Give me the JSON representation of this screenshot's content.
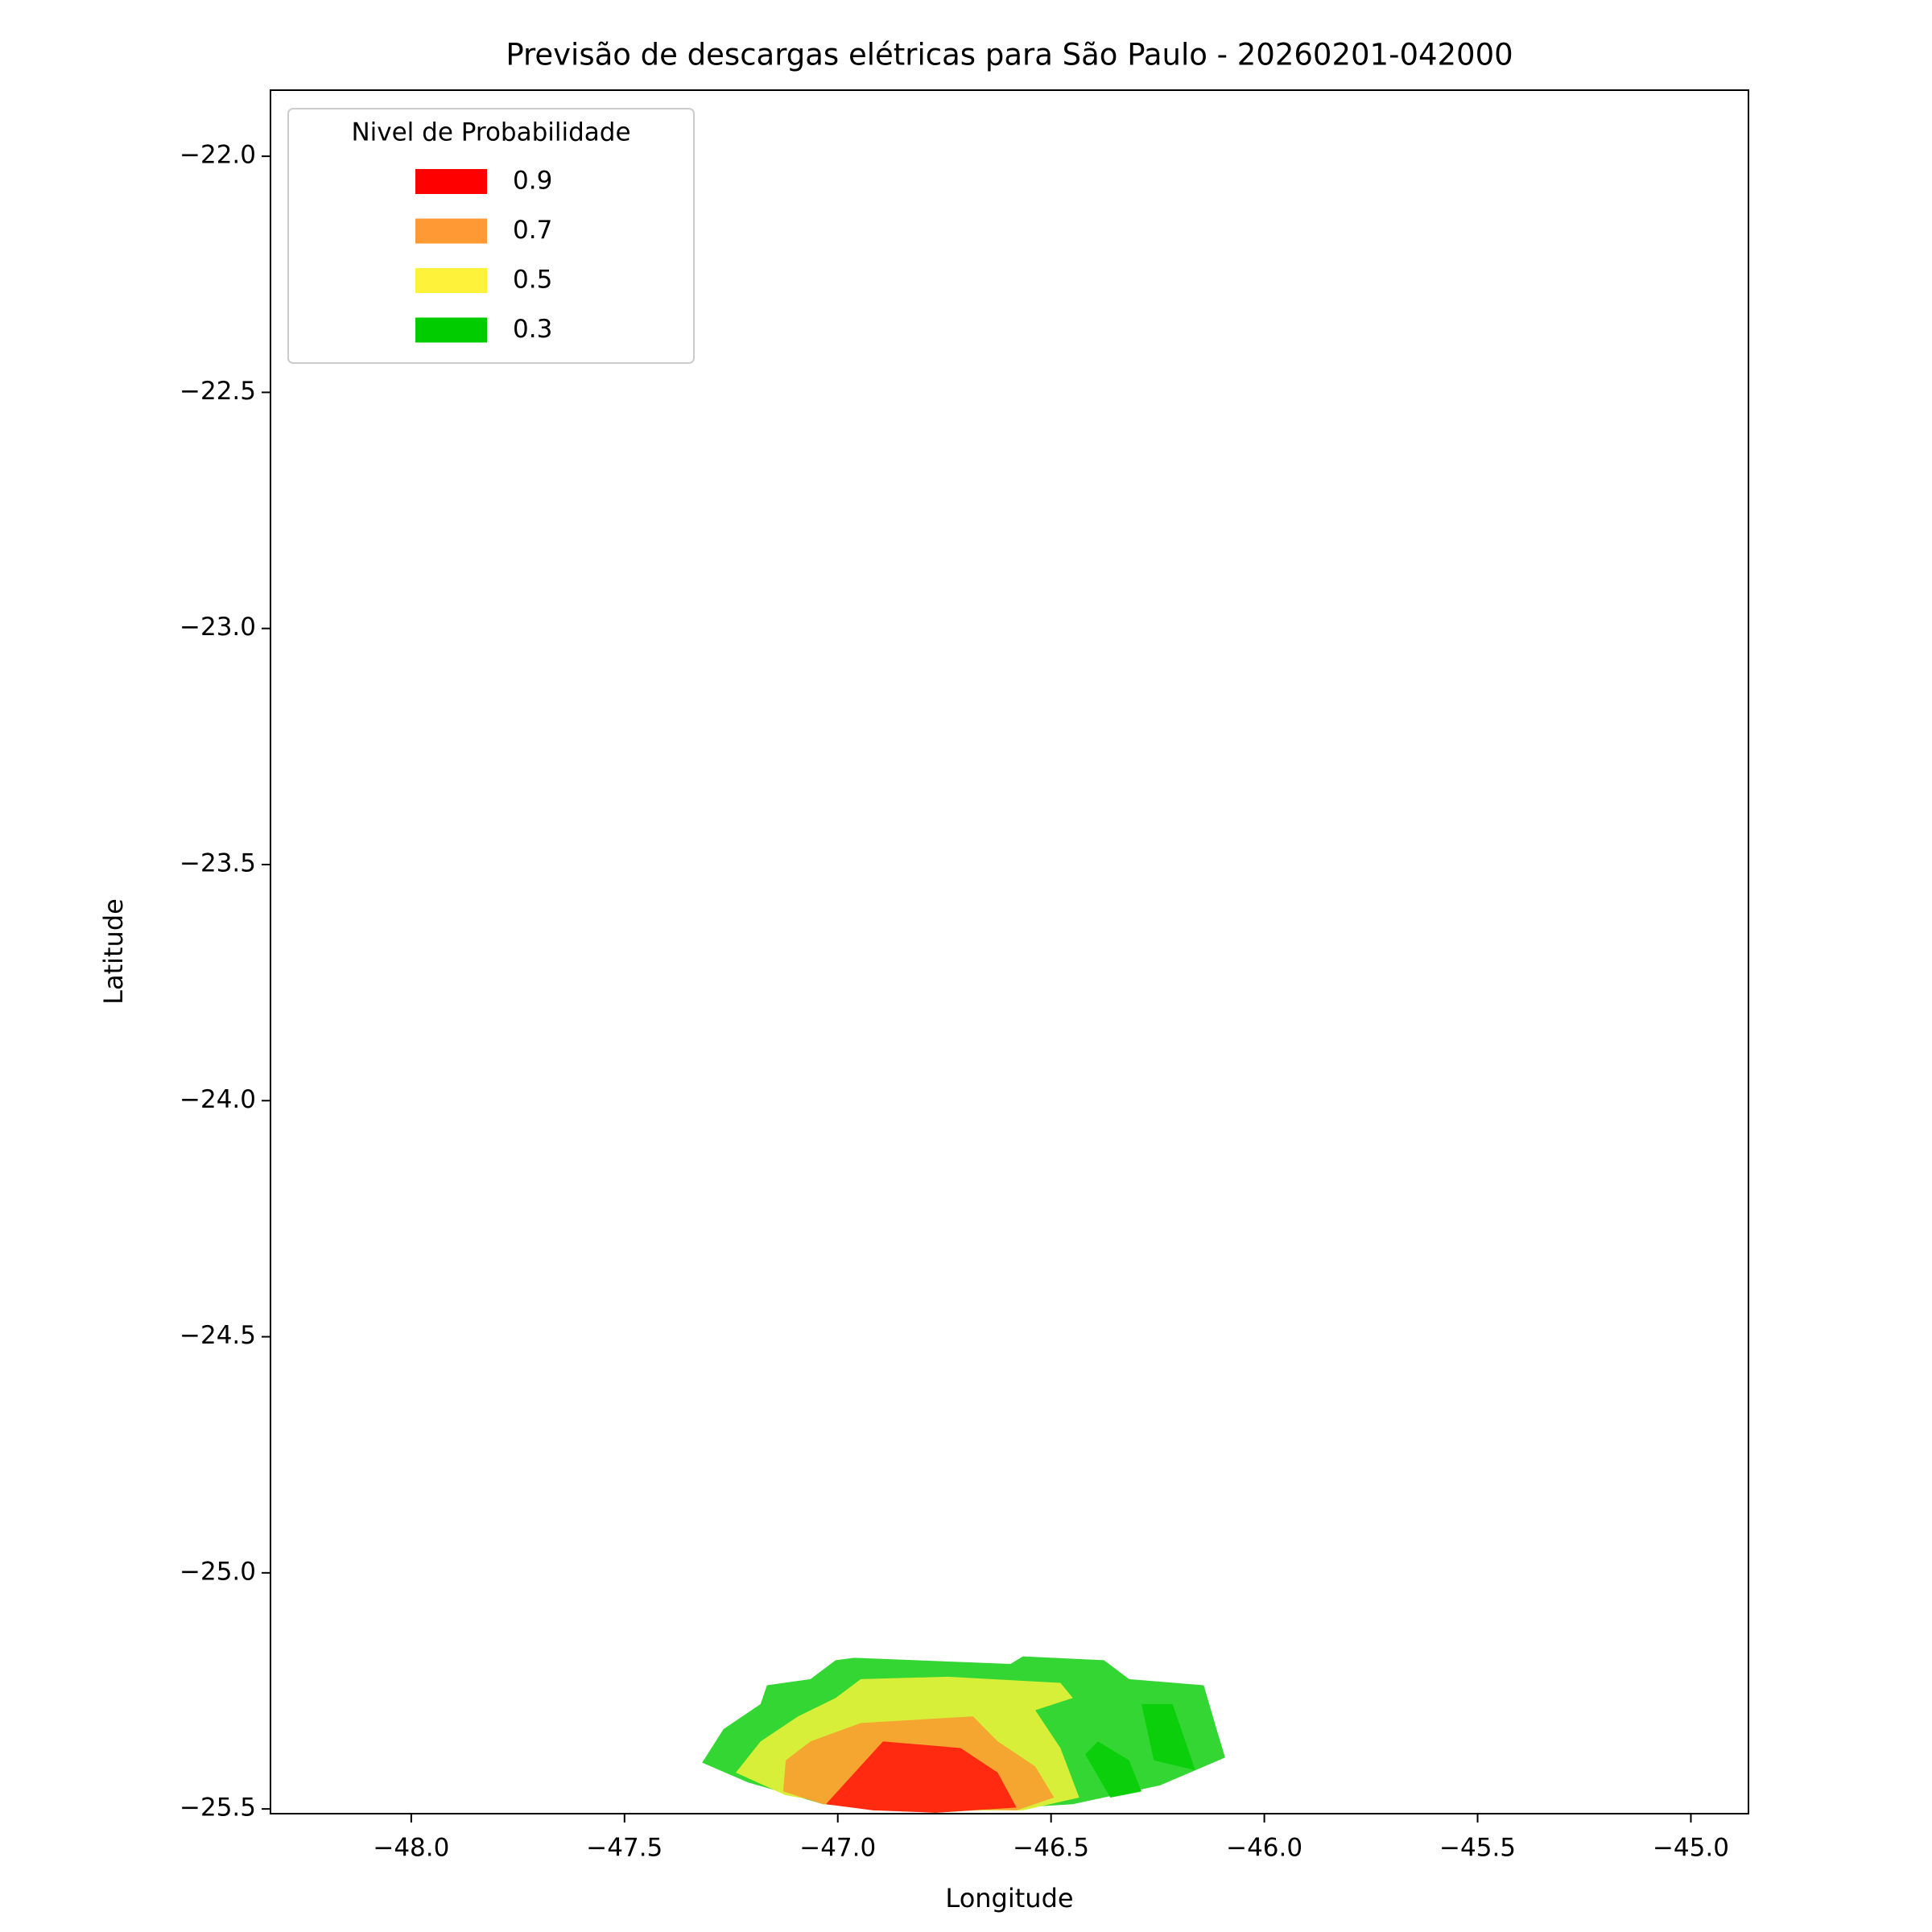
{
  "chart_data": {
    "type": "contour",
    "title": "Previsão de descargas elétricas para São Paulo - 20260201-042000",
    "x_label": "Longitude",
    "y_label": "Latitude",
    "xlim": [
      -48.33,
      -44.865
    ],
    "ylim": [
      -25.51,
      -21.86
    ],
    "xticks": [
      {
        "value": -48,
        "label": "−48.0"
      },
      {
        "value": -47.5,
        "label": "−47.5"
      },
      {
        "value": -47,
        "label": "−47.0"
      },
      {
        "value": -46.5,
        "label": "−46.5"
      },
      {
        "value": -46,
        "label": "−46.0"
      },
      {
        "value": -45.5,
        "label": "−45.5"
      },
      {
        "value": -45,
        "label": "−45.0"
      }
    ],
    "yticks": [
      {
        "value": -22,
        "label": "−22.0"
      },
      {
        "value": -22.5,
        "label": "−22.5"
      },
      {
        "value": -23,
        "label": "−23.0"
      },
      {
        "value": -23.5,
        "label": "−23.5"
      },
      {
        "value": -24,
        "label": "−24.0"
      },
      {
        "value": -24.5,
        "label": "−24.5"
      },
      {
        "value": -25,
        "label": "−25.0"
      },
      {
        "value": -25.5,
        "label": "−25.5"
      }
    ],
    "legend_title": "Nivel de Probabilidade",
    "legend_position": "upper left",
    "levels": [
      {
        "label": "0.9",
        "color": "#ff0000"
      },
      {
        "label": "0.7",
        "color": "#ff9933"
      },
      {
        "label": "0.5",
        "color": "#fff23a"
      },
      {
        "label": "0.3",
        "color": "#00cc00"
      }
    ],
    "regions": [
      {
        "color": "#33d633",
        "lon": [
          -47.318,
          -47.268,
          -47.181,
          -47.166,
          -47.064,
          -47.005,
          -46.961,
          -46.595,
          -46.566,
          -46.376,
          -46.317,
          -46.142,
          -46.112,
          -46.092,
          -46.244,
          -46.449,
          -46.771,
          -47.034,
          -47.21
        ],
        "lat": [
          -25.402,
          -25.331,
          -25.278,
          -25.238,
          -25.225,
          -25.185,
          -25.18,
          -25.193,
          -25.177,
          -25.185,
          -25.225,
          -25.238,
          -25.331,
          -25.391,
          -25.45,
          -25.49,
          -25.508,
          -25.49,
          -25.444
        ]
      },
      {
        "color": "#d7ef38",
        "lon": [
          -47.239,
          -47.181,
          -47.093,
          -47.005,
          -46.946,
          -46.742,
          -46.478,
          -46.449,
          -46.537,
          -46.478,
          -46.434,
          -46.566,
          -46.917,
          -47.122
        ],
        "lat": [
          -25.423,
          -25.357,
          -25.304,
          -25.265,
          -25.225,
          -25.22,
          -25.233,
          -25.265,
          -25.291,
          -25.371,
          -25.476,
          -25.503,
          -25.503,
          -25.471
        ]
      },
      {
        "color": "#f5a631",
        "lon": [
          -47.128,
          -47.122,
          -47.064,
          -46.946,
          -46.683,
          -46.625,
          -46.537,
          -46.493,
          -46.581,
          -46.917,
          -47.034
        ],
        "lat": [
          -25.463,
          -25.397,
          -25.357,
          -25.318,
          -25.304,
          -25.357,
          -25.41,
          -25.476,
          -25.503,
          -25.497,
          -25.49
        ]
      },
      {
        "color": "#ff2a0f",
        "lon": [
          -47.028,
          -46.894,
          -46.712,
          -46.625,
          -46.581,
          -46.771,
          -46.917
        ],
        "lat": [
          -25.49,
          -25.357,
          -25.371,
          -25.423,
          -25.497,
          -25.508,
          -25.503
        ]
      },
      {
        "color": "#0acf0a",
        "lon": [
          -46.42,
          -46.39,
          -46.317,
          -46.288,
          -46.361
        ],
        "lat": [
          -25.384,
          -25.357,
          -25.397,
          -25.463,
          -25.476
        ]
      },
      {
        "color": "#0acf0a",
        "lon": [
          -46.288,
          -46.215,
          -46.162,
          -46.259
        ],
        "lat": [
          -25.278,
          -25.278,
          -25.418,
          -25.397
        ]
      }
    ]
  }
}
